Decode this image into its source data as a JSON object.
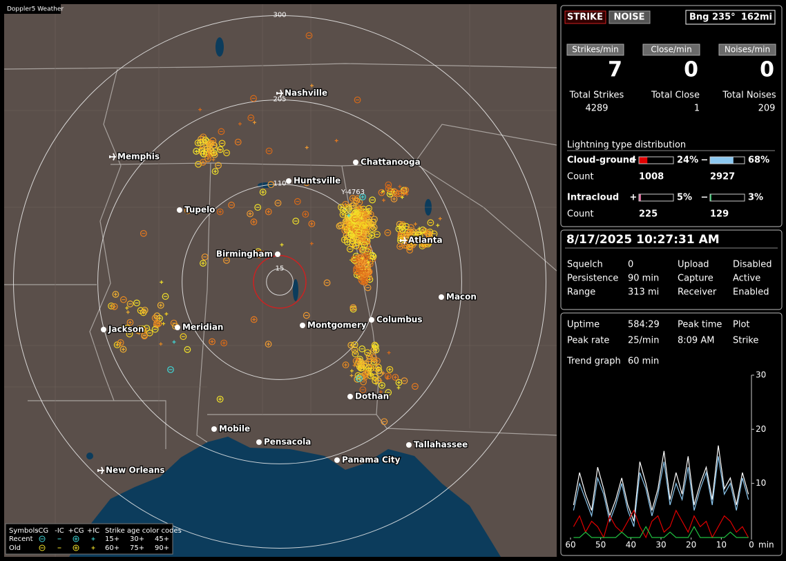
{
  "app_label": "Doppler5 Weather",
  "map": {
    "rings": [
      300,
      205,
      110,
      15
    ],
    "cities": [
      "Nashville",
      "Memphis",
      "Chattanooga",
      "Huntsville",
      "Tupelo",
      "Atlanta",
      "Birmingham",
      "Macon",
      "Jackson",
      "Meridian",
      "Columbus",
      "Montgomery",
      "Dothan",
      "Mobile",
      "Pensacola",
      "Tallahassee",
      "Panama City",
      "New Orleans"
    ],
    "cursor_label": "Y-4763",
    "legend": {
      "symbols_title": "Symbols",
      "symbols": [
        "-CG",
        "-IC",
        "+CG",
        "+IC"
      ],
      "age_title": "Strike age color codes",
      "rows": [
        "Recent",
        "Old"
      ],
      "recent_ages": [
        "15+",
        "30+",
        "45+"
      ],
      "old_ages": [
        "60+",
        "75+",
        "90+"
      ]
    }
  },
  "panel": {
    "mode_buttons": [
      "STRIKE",
      "NOISE"
    ],
    "bearing": "Bng 235°",
    "distance": "162mi",
    "rates": [
      {
        "label": "Strikes/min",
        "value": 7
      },
      {
        "label": "Close/min",
        "value": 0
      },
      {
        "label": "Noises/min",
        "value": 0
      }
    ],
    "totals": [
      {
        "label": "Total Strikes",
        "value": 4289
      },
      {
        "label": "Total Close",
        "value": 1
      },
      {
        "label": "Total Noises",
        "value": 209
      }
    ],
    "distribution": {
      "title": "Lightning type distribution",
      "count_label": "Count",
      "types": [
        {
          "name": "Cloud-ground",
          "positive": {
            "sign": "+",
            "value": 24,
            "label": "24%",
            "count": 1008,
            "color": "#e00000"
          },
          "negative": {
            "sign": "−",
            "value": 68,
            "label": "68%",
            "count": 2927,
            "color": "#8cc8f0"
          }
        },
        {
          "name": "Intracloud",
          "positive": {
            "sign": "+",
            "value": 5,
            "label": "5%",
            "count": 225,
            "color": "#e070a0"
          },
          "negative": {
            "sign": "−",
            "value": 3,
            "label": "3%",
            "count": 129,
            "color": "#20c060"
          }
        }
      ]
    },
    "datetime": "8/17/2025 10:27:31 AM",
    "status": [
      {
        "label": "Squelch",
        "value": 0,
        "color": "#ffffff"
      },
      {
        "label": "Upload",
        "value": "Disabled",
        "color": "#b0b0b0"
      },
      {
        "label": "Persistence",
        "value": "90 min",
        "color": "#ffffff"
      },
      {
        "label": "Capture",
        "value": "Active",
        "color": "#30e030"
      },
      {
        "label": "Range",
        "value": "313 mi",
        "color": "#ffffff"
      },
      {
        "label": "Receiver",
        "value": "Enabled",
        "color": "#30e030"
      }
    ],
    "stats": [
      [
        "Uptime",
        "584:29",
        "Peak time",
        "Plot"
      ],
      [
        "Peak rate",
        "25/min",
        "8:09 AM",
        "Strike"
      ]
    ],
    "trend": {
      "label": "Trend graph",
      "window": "60 min"
    }
  },
  "chart_data": {
    "type": "line",
    "x_label": "min",
    "x": [
      59,
      57,
      55,
      53,
      51,
      49,
      47,
      45,
      43,
      41,
      39,
      37,
      35,
      33,
      31,
      29,
      27,
      25,
      23,
      21,
      19,
      17,
      15,
      13,
      11,
      9,
      7,
      5,
      3,
      1
    ],
    "xlim": [
      60,
      0
    ],
    "xticks": [
      60,
      50,
      40,
      30,
      20,
      10,
      0
    ],
    "ylim": [
      0,
      30
    ],
    "yticks": [
      10,
      20,
      30
    ],
    "series": [
      {
        "color": "#ffffff",
        "values": [
          6,
          12,
          8,
          5,
          13,
          9,
          4,
          7,
          11,
          6,
          3,
          14,
          10,
          5,
          9,
          16,
          7,
          12,
          8,
          15,
          6,
          10,
          13,
          7,
          17,
          9,
          11,
          6,
          12,
          8
        ]
      },
      {
        "color": "#8cc8f0",
        "values": [
          5,
          10,
          7,
          4,
          11,
          8,
          3,
          6,
          10,
          5,
          2,
          12,
          9,
          4,
          8,
          14,
          6,
          10,
          7,
          13,
          5,
          9,
          12,
          6,
          15,
          8,
          10,
          5,
          11,
          7
        ]
      },
      {
        "color": "#e00000",
        "values": [
          2,
          4,
          1,
          3,
          2,
          0,
          4,
          2,
          1,
          3,
          5,
          2,
          0,
          3,
          4,
          1,
          2,
          5,
          3,
          1,
          4,
          2,
          3,
          0,
          2,
          4,
          3,
          1,
          2,
          0
        ]
      },
      {
        "color": "#20c040",
        "values": [
          0,
          0,
          1,
          0,
          0,
          0,
          0,
          0,
          1,
          0,
          0,
          0,
          2,
          0,
          0,
          0,
          1,
          0,
          0,
          0,
          2,
          0,
          0,
          0,
          0,
          0,
          1,
          0,
          0,
          0
        ]
      }
    ]
  }
}
